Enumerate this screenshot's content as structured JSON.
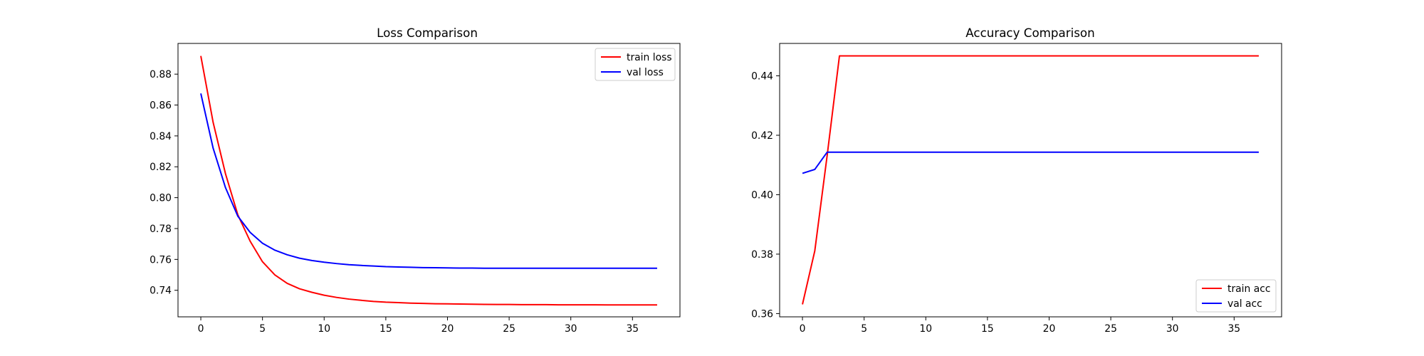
{
  "chart_data": [
    {
      "type": "line",
      "title": "Loss Comparison",
      "xlabel": "",
      "ylabel": "",
      "x": [
        0,
        1,
        2,
        3,
        4,
        5,
        6,
        7,
        8,
        9,
        10,
        11,
        12,
        13,
        14,
        15,
        16,
        17,
        18,
        19,
        20,
        21,
        22,
        23,
        24,
        25,
        26,
        27,
        28,
        29,
        30,
        31,
        32,
        33,
        34,
        35,
        36,
        37
      ],
      "xticks": [
        0,
        5,
        10,
        15,
        20,
        25,
        30,
        35
      ],
      "yticks": [
        0.74,
        0.76,
        0.78,
        0.8,
        0.82,
        0.84,
        0.86,
        0.88
      ],
      "xlim": [
        -1.85,
        38.85
      ],
      "ylim": [
        0.7228,
        0.8999
      ],
      "grid": false,
      "legend": "top-right",
      "series": [
        {
          "name": "train loss",
          "color": "#ff0000",
          "values": [
            0.8918,
            0.8487,
            0.8155,
            0.7889,
            0.7718,
            0.7585,
            0.75,
            0.7445,
            0.741,
            0.7387,
            0.7368,
            0.7354,
            0.7343,
            0.7335,
            0.7328,
            0.7323,
            0.732,
            0.7317,
            0.7315,
            0.7313,
            0.7312,
            0.7311,
            0.731,
            0.7309,
            0.7308,
            0.7308,
            0.7307,
            0.7307,
            0.7307,
            0.7306,
            0.7306,
            0.7306,
            0.7306,
            0.7305,
            0.7305,
            0.7305,
            0.7305,
            0.7305
          ]
        },
        {
          "name": "val loss",
          "color": "#0000ff",
          "values": [
            0.8675,
            0.832,
            0.8065,
            0.788,
            0.7775,
            0.7705,
            0.766,
            0.763,
            0.7608,
            0.7593,
            0.7582,
            0.7573,
            0.7566,
            0.7561,
            0.7557,
            0.7553,
            0.7551,
            0.7549,
            0.7547,
            0.7546,
            0.7545,
            0.7544,
            0.7544,
            0.7543,
            0.7543,
            0.7543,
            0.7543,
            0.7543,
            0.7543,
            0.7543,
            0.7543,
            0.7543,
            0.7543,
            0.7543,
            0.7543,
            0.7543,
            0.7543,
            0.7543
          ]
        }
      ]
    },
    {
      "type": "line",
      "title": "Accuracy Comparison",
      "xlabel": "",
      "ylabel": "",
      "x": [
        0,
        1,
        2,
        3,
        4,
        5,
        6,
        7,
        8,
        9,
        10,
        11,
        12,
        13,
        14,
        15,
        16,
        17,
        18,
        19,
        20,
        21,
        22,
        23,
        24,
        25,
        26,
        27,
        28,
        29,
        30,
        31,
        32,
        33,
        34,
        35,
        36,
        37
      ],
      "xticks": [
        0,
        5,
        10,
        15,
        20,
        25,
        30,
        35
      ],
      "yticks": [
        0.36,
        0.38,
        0.4,
        0.42,
        0.44
      ],
      "xlim": [
        -1.85,
        38.85
      ],
      "ylim": [
        0.3589,
        0.4509
      ],
      "grid": false,
      "legend": "bottom-right",
      "series": [
        {
          "name": "train acc",
          "color": "#ff0000",
          "values": [
            0.3631,
            0.3811,
            0.4131,
            0.4467,
            0.4467,
            0.4467,
            0.4467,
            0.4467,
            0.4467,
            0.4467,
            0.4467,
            0.4467,
            0.4467,
            0.4467,
            0.4467,
            0.4467,
            0.4467,
            0.4467,
            0.4467,
            0.4467,
            0.4467,
            0.4467,
            0.4467,
            0.4467,
            0.4467,
            0.4467,
            0.4467,
            0.4467,
            0.4467,
            0.4467,
            0.4467,
            0.4467,
            0.4467,
            0.4467,
            0.4467,
            0.4467,
            0.4467,
            0.4467
          ]
        },
        {
          "name": "val acc",
          "color": "#0000ff",
          "values": [
            0.4072,
            0.4085,
            0.4143,
            0.4143,
            0.4143,
            0.4143,
            0.4143,
            0.4143,
            0.4143,
            0.4143,
            0.4143,
            0.4143,
            0.4143,
            0.4143,
            0.4143,
            0.4143,
            0.4143,
            0.4143,
            0.4143,
            0.4143,
            0.4143,
            0.4143,
            0.4143,
            0.4143,
            0.4143,
            0.4143,
            0.4143,
            0.4143,
            0.4143,
            0.4143,
            0.4143,
            0.4143,
            0.4143,
            0.4143,
            0.4143,
            0.4143,
            0.4143,
            0.4143
          ]
        }
      ]
    }
  ]
}
